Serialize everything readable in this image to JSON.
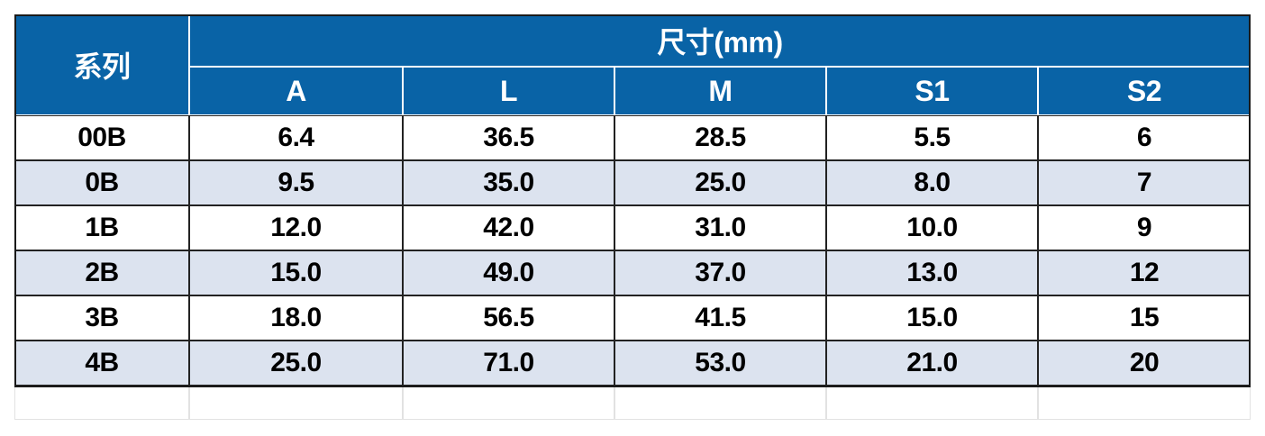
{
  "header": {
    "group": "系列",
    "span": "尺寸(mm)",
    "columns": [
      "A",
      "L",
      "M",
      "S1",
      "S2"
    ]
  },
  "table": {
    "rows": [
      [
        "00B",
        "6.4",
        "36.5",
        "28.5",
        "5.5",
        "6"
      ],
      [
        "0B",
        "9.5",
        "35.0",
        "25.0",
        "8.0",
        "7"
      ],
      [
        "1B",
        "12.0",
        "42.0",
        "31.0",
        "10.0",
        "9"
      ],
      [
        "2B",
        "15.0",
        "49.0",
        "37.0",
        "13.0",
        "12"
      ],
      [
        "3B",
        "18.0",
        "56.5",
        "41.5",
        "15.0",
        "15"
      ],
      [
        "4B",
        "25.0",
        "71.0",
        "53.0",
        "21.0",
        "20"
      ]
    ]
  }
}
